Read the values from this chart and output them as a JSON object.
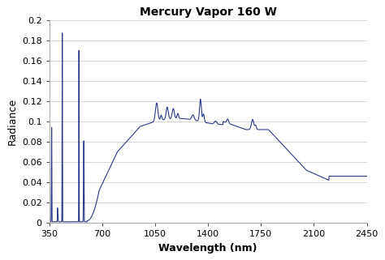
{
  "title": "Mercury Vapor 160 W",
  "xlabel": "Wavelength (nm)",
  "ylabel": "Radiance",
  "xlim": [
    350,
    2450
  ],
  "ylim": [
    0,
    0.2
  ],
  "line_color": "#2a3a8a",
  "line_width": 0.8,
  "background_color": "#ffffff",
  "yticks": [
    0,
    0.02,
    0.04,
    0.06,
    0.08,
    0.1,
    0.12,
    0.14,
    0.16,
    0.18,
    0.2
  ],
  "xticks": [
    350,
    700,
    1050,
    1400,
    1750,
    2100,
    2450
  ],
  "title_fontsize": 10,
  "axis_fontsize": 9,
  "tick_fontsize": 8,
  "grid_color": "#d0d0d0"
}
